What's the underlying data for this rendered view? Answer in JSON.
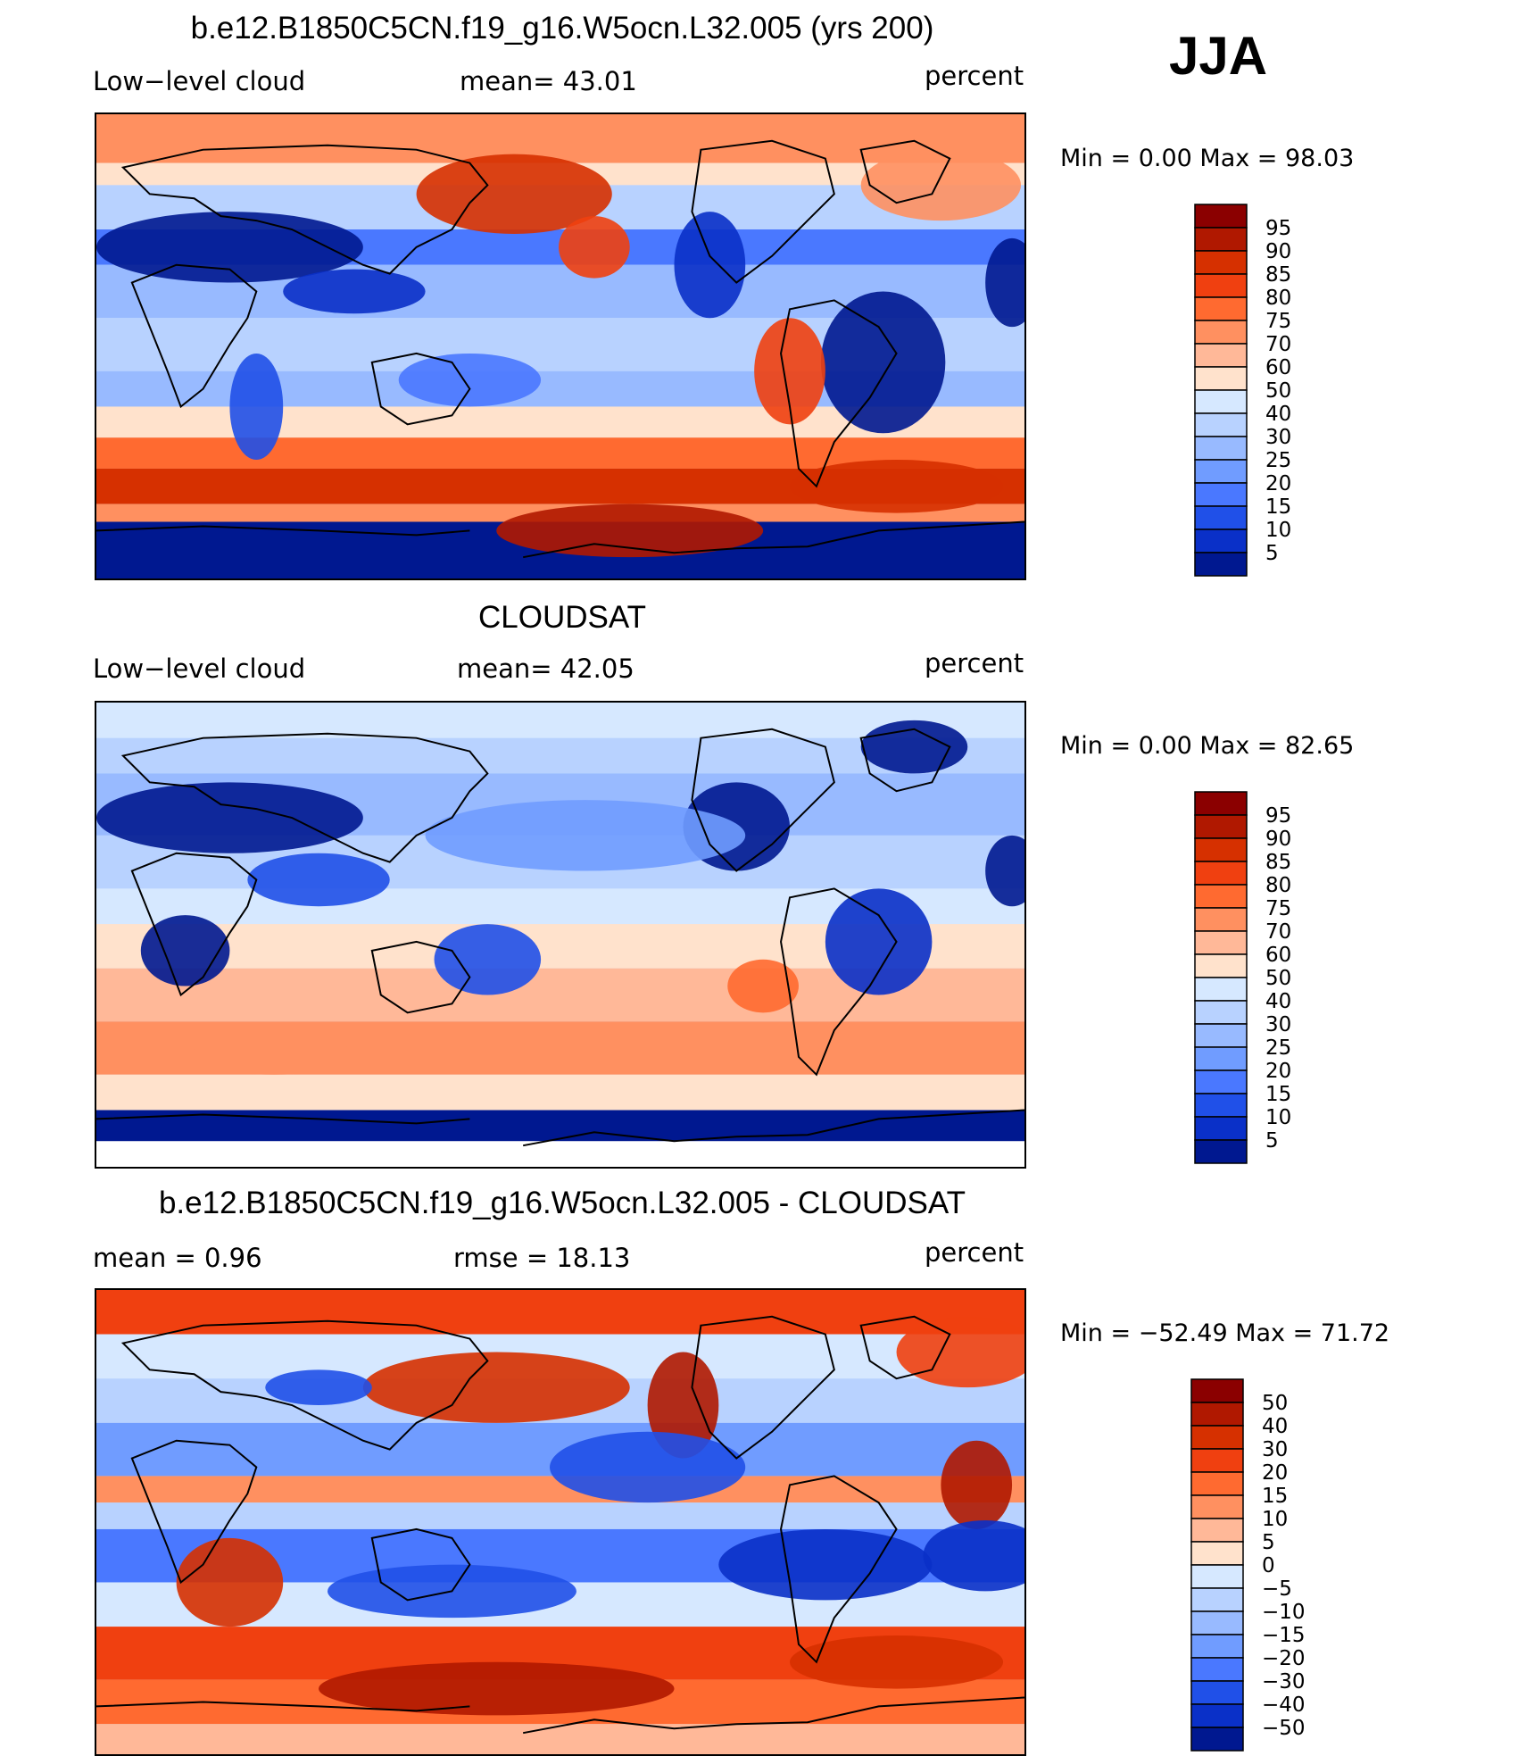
{
  "season": "JJA",
  "panels": [
    {
      "title": "b.e12.B1850C5CN.f19_g16.W5ocn.L32.005 (yrs 200)",
      "left_label": "Low−level cloud",
      "mid_label": "mean=   43.01",
      "right_label": "percent",
      "minmax": "Min  =     0.00  Max  =    98.03",
      "colorbar_labels": [
        "95",
        "90",
        "85",
        "80",
        "75",
        "70",
        "60",
        "50",
        "40",
        "30",
        "25",
        "20",
        "15",
        "10",
        "5"
      ],
      "colors": [
        "#8B0000",
        "#B01800",
        "#D63000",
        "#F04010",
        "#FF6A30",
        "#FF9060",
        "#FFB898",
        "#FFE2CC",
        "#D6E8FF",
        "#B8D2FF",
        "#98BAFF",
        "#709CFF",
        "#4A78FF",
        "#2050E8",
        "#0A30C8",
        "#001890"
      ]
    },
    {
      "title": "CLOUDSAT",
      "left_label": "Low−level cloud",
      "mid_label": "mean=   42.05",
      "right_label": "percent",
      "minmax": "Min  =     0.00  Max  =    82.65",
      "colorbar_labels": [
        "95",
        "90",
        "85",
        "80",
        "75",
        "70",
        "60",
        "50",
        "40",
        "30",
        "25",
        "20",
        "15",
        "10",
        "5"
      ],
      "colors": [
        "#8B0000",
        "#B01800",
        "#D63000",
        "#F04010",
        "#FF6A30",
        "#FF9060",
        "#FFB898",
        "#FFE2CC",
        "#D6E8FF",
        "#B8D2FF",
        "#98BAFF",
        "#709CFF",
        "#4A78FF",
        "#2050E8",
        "#0A30C8",
        "#001890"
      ]
    },
    {
      "title": "b.e12.B1850C5CN.f19_g16.W5ocn.L32.005 - CLOUDSAT",
      "left_label": "mean  =     0.96",
      "mid_label": "rmse  =    18.13",
      "right_label": "percent",
      "minmax": "Min  =  −52.49  Max  =    71.72",
      "colorbar_labels": [
        "50",
        "40",
        "30",
        "20",
        "15",
        "10",
        "5",
        "0",
        "−5",
        "−10",
        "−15",
        "−20",
        "−30",
        "−40",
        "−50"
      ],
      "colors": [
        "#8B0000",
        "#B01800",
        "#D63000",
        "#F04010",
        "#FF6A30",
        "#FF9060",
        "#FFB898",
        "#FFE2CC",
        "#D6E8FF",
        "#B8D2FF",
        "#98BAFF",
        "#709CFF",
        "#4A78FF",
        "#2050E8",
        "#0A30C8",
        "#001890"
      ]
    }
  ]
}
